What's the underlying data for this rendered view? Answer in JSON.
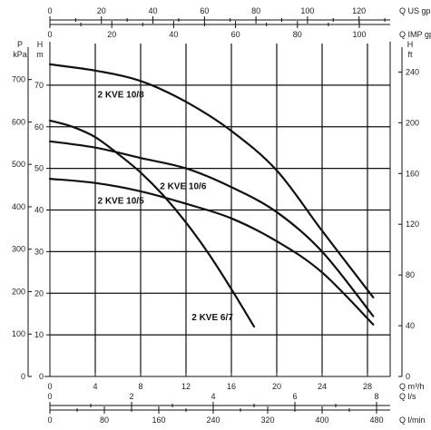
{
  "chart_data": {
    "type": "line",
    "title": "",
    "xlim": [
      0,
      30
    ],
    "ylim": [
      0,
      80
    ],
    "grid": true,
    "axes": {
      "bottom": [
        {
          "unit": "Q m³/h",
          "ticks": [
            "0",
            "4",
            "8",
            "12",
            "16",
            "20",
            "24",
            "28"
          ]
        },
        {
          "unit": "Q l/s",
          "ticks": [
            "0",
            "2",
            "4",
            "6",
            "8"
          ]
        },
        {
          "unit": "Q l/min",
          "ticks": [
            "0",
            "80",
            "160",
            "240",
            "320",
            "400",
            "480"
          ]
        }
      ],
      "top": [
        {
          "unit": "Q US gpm",
          "ticks": [
            "0",
            "20",
            "40",
            "60",
            "80",
            "100",
            "120"
          ]
        },
        {
          "unit": "Q IMP gpm",
          "ticks": [
            "0",
            "20",
            "40",
            "60",
            "80",
            "100"
          ]
        }
      ],
      "left_kpa": {
        "unit_top": "P",
        "unit_bottom": "kPa",
        "ticks": [
          "0",
          "100",
          "200",
          "300",
          "400",
          "500",
          "600",
          "700"
        ]
      },
      "left_m": {
        "unit_top": "H",
        "unit_bottom": "m",
        "ticks": [
          "0",
          "10",
          "20",
          "30",
          "40",
          "50",
          "60",
          "70"
        ]
      },
      "right_ft": {
        "unit_top": "H",
        "unit_bottom": "ft",
        "ticks": [
          "0",
          "40",
          "80",
          "120",
          "160",
          "200",
          "240"
        ]
      }
    },
    "series": [
      {
        "name": "2 KVE 10/8",
        "x": [
          0,
          4,
          8,
          12,
          16,
          20,
          24,
          28.5
        ],
        "y": [
          75,
          73.5,
          71,
          66,
          59,
          49.5,
          35,
          19
        ]
      },
      {
        "name": "2 KVE 10/6",
        "x": [
          0,
          4,
          8,
          12,
          16,
          20,
          24,
          28.5
        ],
        "y": [
          56.5,
          55,
          52.5,
          50,
          45.5,
          39.5,
          30,
          14.5
        ]
      },
      {
        "name": "2 KVE 10/5",
        "x": [
          0,
          4,
          8,
          12,
          16,
          20,
          24,
          28.5
        ],
        "y": [
          47.5,
          46.5,
          44.5,
          41.5,
          38,
          32.5,
          25,
          12.5
        ]
      },
      {
        "name": "2 KVE 6/7",
        "x": [
          0,
          2,
          4,
          6,
          8,
          10,
          12,
          14,
          16,
          18
        ],
        "y": [
          61.5,
          60,
          57.5,
          53.5,
          49,
          43.5,
          37,
          29.5,
          21,
          12
        ]
      }
    ]
  }
}
